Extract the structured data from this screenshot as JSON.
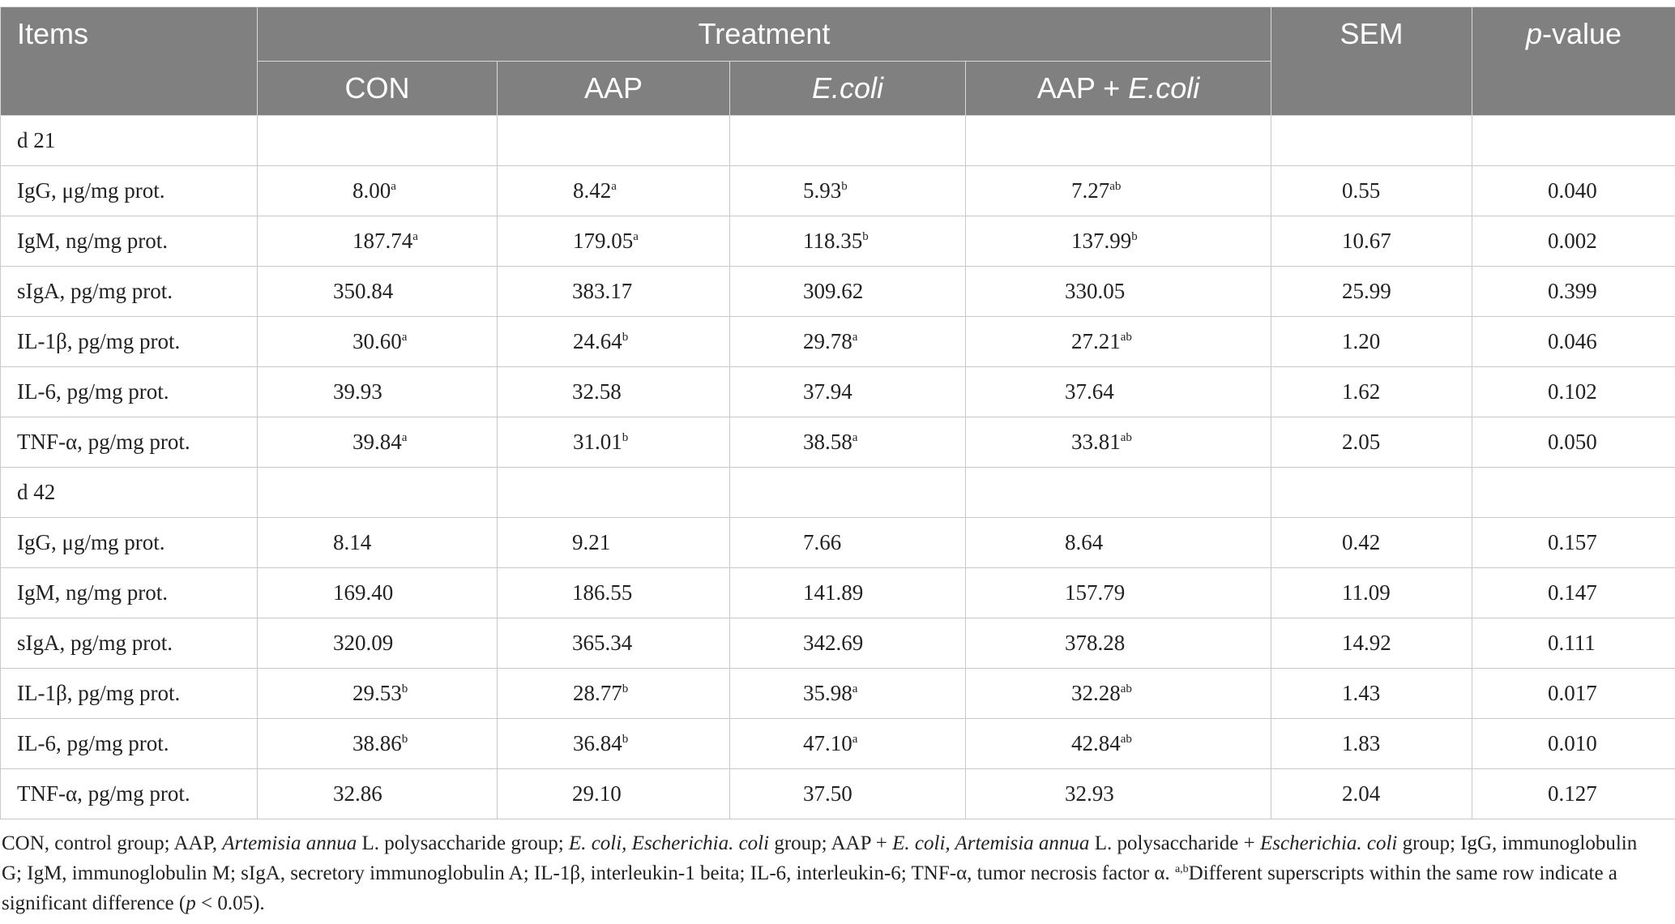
{
  "header": {
    "items": "Items",
    "treatment": "Treatment",
    "sem": "SEM",
    "pvalue_italic": "p",
    "pvalue_rest": "-value",
    "groups": {
      "con": "CON",
      "aap": "AAP",
      "ecoli": "E.coli",
      "aap_ecoli_prefix": "AAP + ",
      "aap_ecoli_italic": "E.coli"
    }
  },
  "sections": [
    {
      "label": "d 21",
      "rows": [
        {
          "item": "IgG, μg/mg prot.",
          "con": "8.00",
          "con_sup": "a",
          "aap": "8.42",
          "aap_sup": "a",
          "ecoli": "5.93",
          "ecoli_sup": "b",
          "aap_ecoli": "7.27",
          "aap_ecoli_sup": "ab",
          "sem": "0.55",
          "p": "0.040"
        },
        {
          "item": "IgM, ng/mg prot.",
          "con": "187.74",
          "con_sup": "a",
          "aap": "179.05",
          "aap_sup": "a",
          "ecoli": "118.35",
          "ecoli_sup": "b",
          "aap_ecoli": "137.99",
          "aap_ecoli_sup": "b",
          "sem": "10.67",
          "p": "0.002"
        },
        {
          "item": "sIgA, pg/mg prot.",
          "con": "350.84",
          "con_sup": "",
          "aap": "383.17",
          "aap_sup": "",
          "ecoli": "309.62",
          "ecoli_sup": "",
          "aap_ecoli": "330.05",
          "aap_ecoli_sup": "",
          "sem": "25.99",
          "p": "0.399"
        },
        {
          "item": "IL-1β, pg/mg prot.",
          "con": "30.60",
          "con_sup": "a",
          "aap": "24.64",
          "aap_sup": "b",
          "ecoli": "29.78",
          "ecoli_sup": "a",
          "aap_ecoli": "27.21",
          "aap_ecoli_sup": "ab",
          "sem": "1.20",
          "p": "0.046"
        },
        {
          "item": "IL-6, pg/mg prot.",
          "con": "39.93",
          "con_sup": "",
          "aap": "32.58",
          "aap_sup": "",
          "ecoli": "37.94",
          "ecoli_sup": "",
          "aap_ecoli": "37.64",
          "aap_ecoli_sup": "",
          "sem": "1.62",
          "p": "0.102"
        },
        {
          "item": "TNF-α, pg/mg prot.",
          "con": "39.84",
          "con_sup": "a",
          "aap": "31.01",
          "aap_sup": "b",
          "ecoli": "38.58",
          "ecoli_sup": "a",
          "aap_ecoli": "33.81",
          "aap_ecoli_sup": "ab",
          "sem": "2.05",
          "p": "0.050"
        }
      ]
    },
    {
      "label": "d 42",
      "rows": [
        {
          "item": "IgG, μg/mg prot.",
          "con": "8.14",
          "con_sup": "",
          "aap": "9.21",
          "aap_sup": "",
          "ecoli": "7.66",
          "ecoli_sup": "",
          "aap_ecoli": "8.64",
          "aap_ecoli_sup": "",
          "sem": "0.42",
          "p": "0.157"
        },
        {
          "item": "IgM, ng/mg prot.",
          "con": "169.40",
          "con_sup": "",
          "aap": "186.55",
          "aap_sup": "",
          "ecoli": "141.89",
          "ecoli_sup": "",
          "aap_ecoli": "157.79",
          "aap_ecoli_sup": "",
          "sem": "11.09",
          "p": "0.147"
        },
        {
          "item": "sIgA, pg/mg prot.",
          "con": "320.09",
          "con_sup": "",
          "aap": "365.34",
          "aap_sup": "",
          "ecoli": "342.69",
          "ecoli_sup": "",
          "aap_ecoli": "378.28",
          "aap_ecoli_sup": "",
          "sem": "14.92",
          "p": "0.111"
        },
        {
          "item": "IL-1β, pg/mg prot.",
          "con": "29.53",
          "con_sup": "b",
          "aap": "28.77",
          "aap_sup": "b",
          "ecoli": "35.98",
          "ecoli_sup": "a",
          "aap_ecoli": "32.28",
          "aap_ecoli_sup": "ab",
          "sem": "1.43",
          "p": "0.017"
        },
        {
          "item": "IL-6, pg/mg prot.",
          "con": "38.86",
          "con_sup": "b",
          "aap": "36.84",
          "aap_sup": "b",
          "ecoli": "47.10",
          "ecoli_sup": "a",
          "aap_ecoli": "42.84",
          "aap_ecoli_sup": "ab",
          "sem": "1.83",
          "p": "0.010"
        },
        {
          "item": "TNF-α, pg/mg prot.",
          "con": "32.86",
          "con_sup": "",
          "aap": "29.10",
          "aap_sup": "",
          "ecoli": "37.50",
          "ecoli_sup": "",
          "aap_ecoli": "32.93",
          "aap_ecoli_sup": "",
          "sem": "2.04",
          "p": "0.127"
        }
      ]
    }
  ],
  "footnote": {
    "t1": "CON, control group; AAP, ",
    "t2": "Artemisia annua",
    "t3": " L. polysaccharide group; ",
    "t4": "E. coli, Escherichia. coli",
    "t5": " group; AAP + ",
    "t6": "E. coli, Artemisia annua",
    "t7": " L. polysaccharide + ",
    "t8": "Escherichia. coli",
    "t9": " group; IgG, immunoglobulin G; IgM, immunoglobulin M; sIgA, secretory immunoglobulin A; IL-1β, interleukin-1 beita; IL-6, interleukin-6; TNF-α, tumor necrosis factor α. ",
    "sup": "a,b",
    "t10": "Different superscripts within the same row indicate a significant difference (",
    "p": "p",
    "t11": " < 0.05)."
  }
}
